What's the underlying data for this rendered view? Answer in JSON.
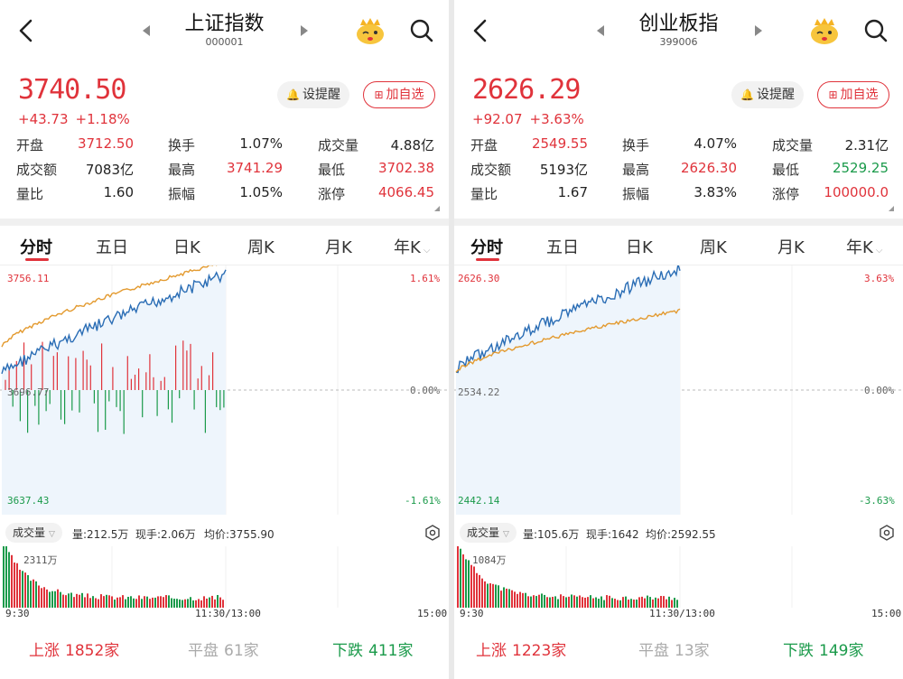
{
  "panels": [
    {
      "title": "上证指数",
      "code": "000001",
      "price": "3740.50",
      "change_abs": "+43.73",
      "change_pct": "+1.18%",
      "buttons": {
        "alert": "设提醒",
        "fav": "加自选"
      },
      "stats": [
        [
          {
            "label": "开盘",
            "value": "3712.50",
            "color": "red"
          },
          {
            "label": "换手",
            "value": "1.07%",
            "color": ""
          },
          {
            "label": "成交量",
            "value": "4.88亿",
            "color": ""
          }
        ],
        [
          {
            "label": "成交额",
            "value": "7083亿",
            "color": ""
          },
          {
            "label": "最高",
            "value": "3741.29",
            "color": "red"
          },
          {
            "label": "最低",
            "value": "3702.38",
            "color": "red"
          }
        ],
        [
          {
            "label": "量比",
            "value": "1.60",
            "color": ""
          },
          {
            "label": "振幅",
            "value": "1.05%",
            "color": ""
          },
          {
            "label": "涨停",
            "value": "4066.45",
            "color": "red"
          }
        ]
      ],
      "tabs": [
        "分时",
        "五日",
        "日K",
        "周K",
        "月K",
        "年K"
      ],
      "chart": {
        "top_price": "3756.11",
        "mid_price": "3696.77",
        "bottom_price": "3637.43",
        "top_pct": "1.61%",
        "mid_pct": "0.00%",
        "bottom_pct": "-1.61%"
      },
      "volume": {
        "selector": "成交量",
        "vol": "量:212.5万",
        "turnover": "现手:2.06万",
        "avg": "均价:3755.90",
        "max": "2311万"
      },
      "xaxis": {
        "start": "9:30",
        "mid": "11:30/13:00",
        "end": "15:00"
      },
      "breadth": {
        "up_label": "上涨",
        "up": "1852家",
        "flat_label": "平盘",
        "flat": "61家",
        "down_label": "下跌",
        "down": "411家"
      }
    },
    {
      "title": "创业板指",
      "code": "399006",
      "price": "2626.29",
      "change_abs": "+92.07",
      "change_pct": "+3.63%",
      "buttons": {
        "alert": "设提醒",
        "fav": "加自选"
      },
      "stats": [
        [
          {
            "label": "开盘",
            "value": "2549.55",
            "color": "red"
          },
          {
            "label": "换手",
            "value": "4.07%",
            "color": ""
          },
          {
            "label": "成交量",
            "value": "2.31亿",
            "color": ""
          }
        ],
        [
          {
            "label": "成交额",
            "value": "5193亿",
            "color": ""
          },
          {
            "label": "最高",
            "value": "2626.30",
            "color": "red"
          },
          {
            "label": "最低",
            "value": "2529.25",
            "color": "green"
          }
        ],
        [
          {
            "label": "量比",
            "value": "1.67",
            "color": ""
          },
          {
            "label": "振幅",
            "value": "3.83%",
            "color": ""
          },
          {
            "label": "涨停",
            "value": "100000.0",
            "color": "red"
          }
        ]
      ],
      "tabs": [
        "分时",
        "五日",
        "日K",
        "周K",
        "月K",
        "年K"
      ],
      "chart": {
        "top_price": "2626.30",
        "mid_price": "2534.22",
        "bottom_price": "2442.14",
        "top_pct": "3.63%",
        "mid_pct": "0.00%",
        "bottom_pct": "-3.63%"
      },
      "volume": {
        "selector": "成交量",
        "vol": "量:105.6万",
        "turnover": "现手:1642",
        "avg": "均价:2592.55",
        "max": "1084万"
      },
      "xaxis": {
        "start": "9:30",
        "mid": "11:30/13:00",
        "end": "15:00"
      },
      "breadth": {
        "up_label": "上涨",
        "up": "1223家",
        "flat_label": "平盘",
        "flat": "13家",
        "down_label": "下跌",
        "down": "149家"
      }
    }
  ],
  "colors": {
    "up": "#e0333b",
    "down": "#1a9a4a",
    "price_line": "#2a6db5",
    "avg_line": "#e39a2f"
  }
}
